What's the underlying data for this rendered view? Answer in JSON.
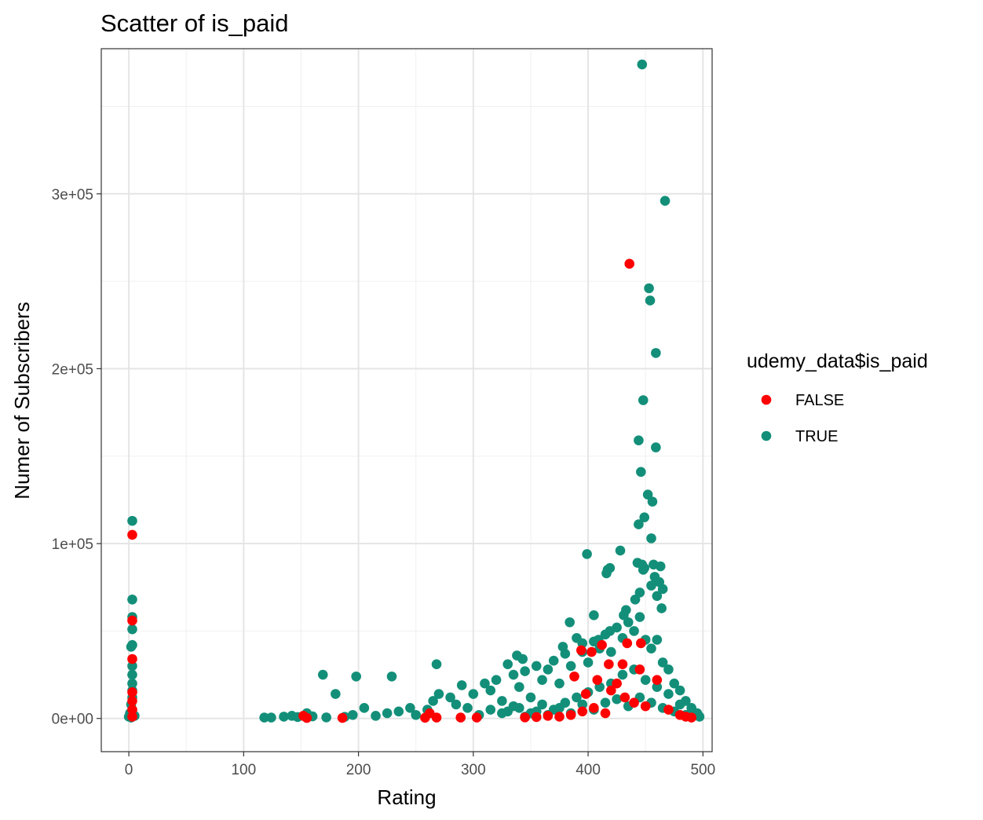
{
  "chart_data": {
    "type": "scatter",
    "title": "Scatter of is_paid",
    "xlabel": "Rating",
    "ylabel": "Numer of Subscribers",
    "xlim": [
      -24,
      508
    ],
    "ylim": [
      -19000,
      383000
    ],
    "x_ticks": [
      0,
      100,
      200,
      300,
      400,
      500
    ],
    "x_tick_labels": [
      "0",
      "100",
      "200",
      "300",
      "400",
      "500"
    ],
    "y_ticks": [
      0,
      100000,
      200000,
      300000
    ],
    "y_tick_labels": [
      "0e+00",
      "1e+05",
      "2e+05",
      "3e+05"
    ],
    "grid": true,
    "legend": {
      "title": "udemy_data$is_paid",
      "position": "right",
      "entries": [
        {
          "label": "FALSE",
          "color": "#ff0000"
        },
        {
          "label": "TRUE",
          "color": "#138f79"
        }
      ]
    },
    "series": [
      {
        "name": "TRUE",
        "color": "#138f79",
        "points": [
          [
            447,
            374000
          ],
          [
            467,
            296000
          ],
          [
            453,
            246000
          ],
          [
            454,
            239000
          ],
          [
            459,
            209000
          ],
          [
            448,
            182000
          ],
          [
            444,
            159000
          ],
          [
            459,
            155000
          ],
          [
            446,
            141000
          ],
          [
            452,
            128000
          ],
          [
            449,
            115000
          ],
          [
            456,
            124000
          ],
          [
            444,
            111000
          ],
          [
            455,
            103000
          ],
          [
            399,
            94000
          ],
          [
            428,
            96000
          ],
          [
            443,
            89000
          ],
          [
            447,
            88000
          ],
          [
            457,
            88000
          ],
          [
            463,
            87000
          ],
          [
            416,
            83000
          ],
          [
            419,
            86000
          ],
          [
            417,
            85000
          ],
          [
            448,
            85000
          ],
          [
            449,
            86000
          ],
          [
            458,
            81000
          ],
          [
            462,
            78000
          ],
          [
            455,
            76000
          ],
          [
            445,
            72000
          ],
          [
            441,
            68000
          ],
          [
            433,
            62000
          ],
          [
            460,
            70000
          ],
          [
            465,
            74000
          ],
          [
            464,
            63000
          ],
          [
            431,
            59000
          ],
          [
            405,
            59000
          ],
          [
            384,
            55000
          ],
          [
            419,
            50000
          ],
          [
            409,
            45000
          ],
          [
            395,
            43000
          ],
          [
            378,
            41000
          ],
          [
            343,
            34000
          ],
          [
            338,
            36000
          ],
          [
            268,
            31000
          ],
          [
            198,
            24000
          ],
          [
            169,
            25000
          ],
          [
            229,
            24000
          ],
          [
            180,
            14000
          ],
          [
            205,
            6000
          ],
          [
            155,
            3000
          ],
          [
            118,
            500
          ],
          [
            124,
            500
          ],
          [
            135,
            1000
          ],
          [
            142,
            1500
          ],
          [
            147,
            800
          ],
          [
            160,
            1200
          ],
          [
            172,
            600
          ],
          [
            188,
            900
          ],
          [
            195,
            2000
          ],
          [
            215,
            1500
          ],
          [
            225,
            3000
          ],
          [
            235,
            4000
          ],
          [
            245,
            6000
          ],
          [
            250,
            2000
          ],
          [
            260,
            5000
          ],
          [
            265,
            10000
          ],
          [
            270,
            14000
          ],
          [
            280,
            12000
          ],
          [
            285,
            8000
          ],
          [
            290,
            19000
          ],
          [
            295,
            6000
          ],
          [
            300,
            14000
          ],
          [
            310,
            20000
          ],
          [
            315,
            16000
          ],
          [
            320,
            22000
          ],
          [
            325,
            10000
          ],
          [
            330,
            31000
          ],
          [
            335,
            25000
          ],
          [
            340,
            18000
          ],
          [
            345,
            27000
          ],
          [
            350,
            12000
          ],
          [
            355,
            30000
          ],
          [
            360,
            22000
          ],
          [
            365,
            28000
          ],
          [
            370,
            33000
          ],
          [
            375,
            20000
          ],
          [
            380,
            37000
          ],
          [
            385,
            30000
          ],
          [
            390,
            46000
          ],
          [
            395,
            38000
          ],
          [
            400,
            32000
          ],
          [
            405,
            44000
          ],
          [
            410,
            40000
          ],
          [
            415,
            48000
          ],
          [
            420,
            38000
          ],
          [
            425,
            52000
          ],
          [
            430,
            46000
          ],
          [
            435,
            55000
          ],
          [
            440,
            50000
          ],
          [
            445,
            58000
          ],
          [
            450,
            45000
          ],
          [
            455,
            40000
          ],
          [
            460,
            45000
          ],
          [
            465,
            32000
          ],
          [
            470,
            28000
          ],
          [
            475,
            20000
          ],
          [
            480,
            16000
          ],
          [
            485,
            10000
          ],
          [
            490,
            6000
          ],
          [
            495,
            3000
          ],
          [
            497,
            1000
          ],
          [
            330,
            4000
          ],
          [
            340,
            6000
          ],
          [
            350,
            3000
          ],
          [
            360,
            8000
          ],
          [
            370,
            5000
          ],
          [
            380,
            9000
          ],
          [
            390,
            12000
          ],
          [
            400,
            15000
          ],
          [
            410,
            18000
          ],
          [
            420,
            20000
          ],
          [
            430,
            25000
          ],
          [
            440,
            28000
          ],
          [
            450,
            22000
          ],
          [
            460,
            18000
          ],
          [
            470,
            14000
          ],
          [
            480,
            8000
          ],
          [
            305,
            2000
          ],
          [
            315,
            5000
          ],
          [
            325,
            3000
          ],
          [
            335,
            7000
          ],
          [
            345,
            1000
          ],
          [
            355,
            4000
          ],
          [
            365,
            2000
          ],
          [
            375,
            6000
          ],
          [
            385,
            3000
          ],
          [
            395,
            8000
          ],
          [
            405,
            5000
          ],
          [
            415,
            9000
          ],
          [
            425,
            11000
          ],
          [
            435,
            7000
          ],
          [
            445,
            12000
          ],
          [
            455,
            9000
          ],
          [
            465,
            6000
          ],
          [
            475,
            4000
          ],
          [
            485,
            2000
          ],
          [
            3,
            113000
          ],
          [
            3,
            68000
          ],
          [
            3,
            58000
          ],
          [
            3,
            51000
          ],
          [
            3,
            42000
          ],
          [
            2,
            41000
          ],
          [
            3,
            30000
          ],
          [
            3,
            25000
          ],
          [
            3,
            20000
          ],
          [
            3,
            16000
          ],
          [
            3,
            12000
          ],
          [
            2,
            8000
          ],
          [
            3,
            5000
          ],
          [
            1,
            3000
          ],
          [
            0,
            1000
          ],
          [
            4,
            2000
          ],
          [
            2,
            500
          ],
          [
            5,
            1500
          ]
        ]
      },
      {
        "name": "FALSE",
        "color": "#ff0000",
        "points": [
          [
            436,
            260000
          ],
          [
            446,
            43000
          ],
          [
            434,
            43000
          ],
          [
            412,
            42000
          ],
          [
            394,
            39000
          ],
          [
            403,
            38000
          ],
          [
            430,
            31000
          ],
          [
            418,
            31000
          ],
          [
            445,
            28000
          ],
          [
            388,
            24000
          ],
          [
            425,
            20000
          ],
          [
            408,
            22000
          ],
          [
            460,
            22000
          ],
          [
            398,
            14000
          ],
          [
            420,
            16000
          ],
          [
            432,
            12000
          ],
          [
            440,
            9000
          ],
          [
            450,
            7000
          ],
          [
            470,
            5000
          ],
          [
            480,
            2000
          ],
          [
            485,
            1000
          ],
          [
            490,
            500
          ],
          [
            415,
            3000
          ],
          [
            405,
            6000
          ],
          [
            395,
            4000
          ],
          [
            385,
            2000
          ],
          [
            375,
            1000
          ],
          [
            365,
            1500
          ],
          [
            355,
            800
          ],
          [
            345,
            600
          ],
          [
            303,
            500
          ],
          [
            289,
            500
          ],
          [
            268,
            500
          ],
          [
            258,
            400
          ],
          [
            262,
            3000
          ],
          [
            186,
            300
          ],
          [
            152,
            1500
          ],
          [
            155,
            300
          ],
          [
            3,
            105000
          ],
          [
            3,
            56000
          ],
          [
            3,
            34000
          ],
          [
            3,
            15000
          ],
          [
            3,
            10000
          ],
          [
            3,
            5000
          ],
          [
            3,
            1000
          ]
        ]
      }
    ]
  }
}
